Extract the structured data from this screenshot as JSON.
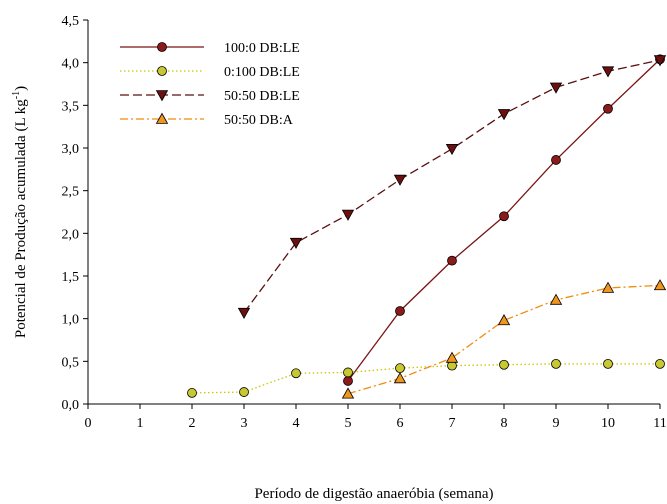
{
  "chart_data": {
    "type": "line",
    "xlabel": "Período de digestão anaeróbia (semana)",
    "ylabel": "Potencial de Produção acumulada (L kg",
    "ylabel_superscript": "-1",
    "ylabel_suffix": ")",
    "xlim": [
      0,
      11
    ],
    "ylim": [
      0,
      4.5
    ],
    "x_ticks": [
      0,
      1,
      2,
      3,
      4,
      5,
      6,
      7,
      8,
      9,
      10,
      11
    ],
    "y_ticks": [
      "0,0",
      "0,5",
      "1,0",
      "1,5",
      "2,0",
      "2,5",
      "3,0",
      "3,5",
      "4,0",
      "4,5"
    ],
    "y_tick_values": [
      0,
      0.5,
      1,
      1.5,
      2,
      2.5,
      3,
      3.5,
      4,
      4.5
    ],
    "grid": false,
    "legend_position": "top-left",
    "series": [
      {
        "name": "100:0 DB:LE",
        "color": "#7a1414",
        "marker_fill": "#8b1a1a",
        "marker": "circle",
        "line_style": "solid",
        "x": [
          5,
          6,
          7,
          8,
          9,
          10,
          11
        ],
        "y": [
          0.27,
          1.09,
          1.68,
          2.2,
          2.86,
          3.46,
          4.04
        ]
      },
      {
        "name": "0:100 DB:LE",
        "color": "#c8c800",
        "marker_fill": "#c8c832",
        "marker": "circle",
        "line_style": "dotted",
        "x": [
          2,
          3,
          4,
          5,
          6,
          7,
          8,
          9,
          10,
          11
        ],
        "y": [
          0.13,
          0.14,
          0.36,
          0.37,
          0.42,
          0.45,
          0.46,
          0.47,
          0.47,
          0.47
        ]
      },
      {
        "name": "50:50 DB:LE",
        "color": "#5a1010",
        "marker_fill": "#6b1010",
        "marker": "triangle-down",
        "line_style": "dashed",
        "x": [
          3,
          4,
          5,
          6,
          7,
          8,
          9,
          10,
          11
        ],
        "y": [
          1.07,
          1.89,
          2.22,
          2.63,
          2.99,
          3.4,
          3.71,
          3.9,
          4.03
        ]
      },
      {
        "name": "50:50 DB:A",
        "color": "#f08c10",
        "marker_fill": "#f0961e",
        "marker": "triangle-up",
        "line_style": "dash-dot",
        "x": [
          5,
          6,
          7,
          8,
          9,
          10,
          11
        ],
        "y": [
          0.12,
          0.3,
          0.54,
          0.98,
          1.22,
          1.36,
          1.39
        ]
      }
    ]
  }
}
